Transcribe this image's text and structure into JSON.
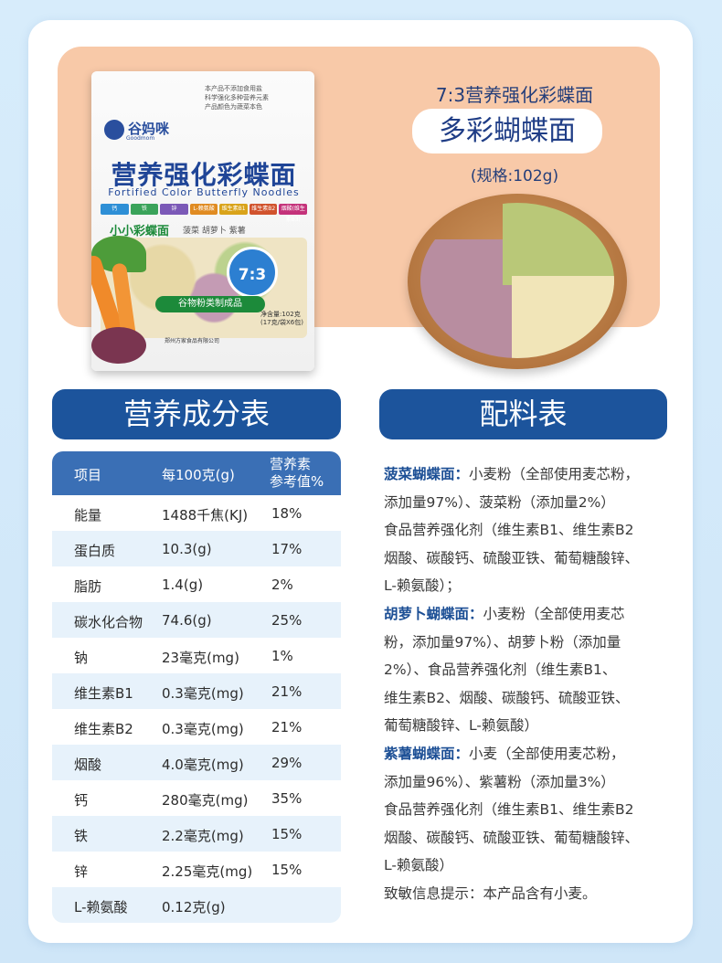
{
  "package": {
    "notes": [
      "本产品不添加食用盐",
      "科学强化多种营养元素",
      "产品颜色为蔬菜本色"
    ],
    "brand": "谷妈咪",
    "brand_en": "Goodmom",
    "title": "营养强化彩蝶面",
    "subtitle": "Fortified Color Butterfly Noodles",
    "tags": [
      "钙",
      "铁",
      "锌",
      "L-赖氨酸",
      "维生素B1",
      "维生素B2",
      "烟酸(维生素B3)"
    ],
    "mini_title": "小小彩蝶面",
    "vegetables": "菠菜  胡萝卜  紫薯",
    "ratio": "7:3",
    "category": "谷物粉类制成品",
    "net_weight": "净含量:102克",
    "net_weight_detail": "(17克/袋X6包)",
    "company": "郑州方家食品有限公司"
  },
  "hero": {
    "top_line": "7:3营养强化彩蝶面",
    "product_name": "多彩蝴蝶面",
    "spec": "(规格:102g)"
  },
  "nutrition": {
    "heading": "营养成分表",
    "headers": [
      "项目",
      "每100克(g)",
      "营养素",
      "参考值%"
    ],
    "rows": [
      {
        "item": "能量",
        "amount": "1488千焦(KJ)",
        "nrv": "18%"
      },
      {
        "item": "蛋白质",
        "amount": "10.3(g)",
        "nrv": "17%"
      },
      {
        "item": "脂肪",
        "amount": "1.4(g)",
        "nrv": "2%"
      },
      {
        "item": "碳水化合物",
        "amount": "74.6(g)",
        "nrv": "25%"
      },
      {
        "item": "钠",
        "amount": "23毫克(mg)",
        "nrv": "1%"
      },
      {
        "item": "维生素B1",
        "amount": "0.3毫克(mg)",
        "nrv": "21%"
      },
      {
        "item": "维生素B2",
        "amount": "0.3毫克(mg)",
        "nrv": "21%"
      },
      {
        "item": "烟酸",
        "amount": "4.0毫克(mg)",
        "nrv": "29%"
      },
      {
        "item": "钙",
        "amount": "280毫克(mg)",
        "nrv": "35%"
      },
      {
        "item": "铁",
        "amount": "2.2毫克(mg)",
        "nrv": "15%"
      },
      {
        "item": "锌",
        "amount": "2.25毫克(mg)",
        "nrv": "15%"
      },
      {
        "item": "L-赖氨酸",
        "amount": "0.12克(g)",
        "nrv": ""
      }
    ]
  },
  "ingredients": {
    "heading": "配料表",
    "spinach_label": "菠菜蝴蝶面：",
    "spinach_lines": [
      "小麦粉（全部使用麦芯粉，",
      "添加量97%）、菠菜粉（添加量2%）",
      "食品营养强化剂（维生素B1、维生素B2",
      "烟酸、碳酸钙、硫酸亚铁、葡萄糖酸锌、",
      "L-赖氨酸）；"
    ],
    "carrot_label": "胡萝卜蝴蝶面：",
    "carrot_lines": [
      "小麦粉（全部使用麦芯",
      "粉，添加量97%）、胡萝卜粉（添加量",
      "2%）、食品营养强化剂（维生素B1、",
      "维生素B2、烟酸、碳酸钙、硫酸亚铁、",
      "葡萄糖酸锌、L-赖氨酸）"
    ],
    "purple_label": "紫薯蝴蝶面：",
    "purple_lines": [
      "小麦（全部使用麦芯粉，",
      "添加量96%）、紫薯粉（添加量3%）",
      "食品营养强化剂（维生素B1、维生素B2",
      "烟酸、碳酸钙、硫酸亚铁、葡萄糖酸锌、",
      "L-赖氨酸）"
    ],
    "allergen": "致敏信息提示：本产品含有小麦。"
  }
}
